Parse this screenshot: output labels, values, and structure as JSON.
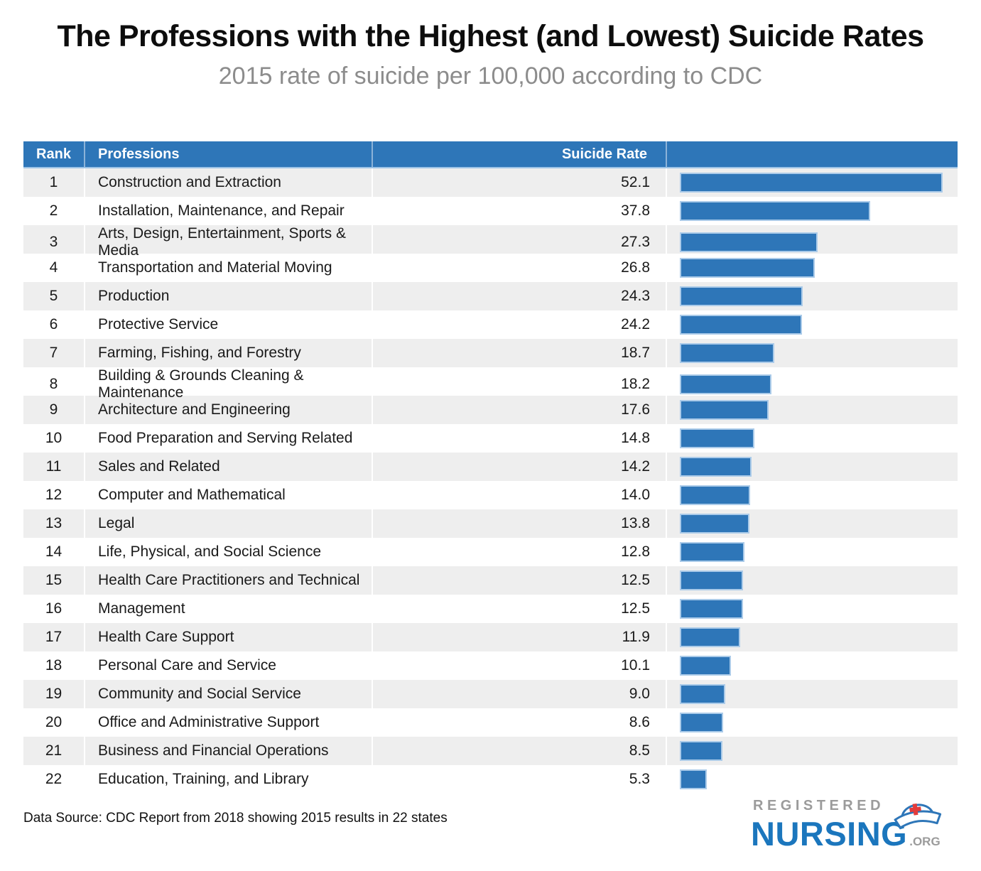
{
  "header": {
    "title": "The Professions with the Highest (and Lowest) Suicide Rates",
    "subtitle": "2015 rate of suicide per 100,000 according to CDC"
  },
  "table": {
    "columns": {
      "rank": "Rank",
      "professions": "Professions",
      "rate": "Suicide Rate"
    }
  },
  "chart_data": {
    "type": "bar",
    "orientation": "horizontal",
    "title": "The Professions with the Highest (and Lowest) Suicide Rates",
    "subtitle": "2015 rate of suicide per 100,000 according to CDC",
    "xlabel": "Suicide Rate",
    "xlim": [
      0,
      52.1
    ],
    "grid": false,
    "legend": "none",
    "ranks": [
      1,
      2,
      3,
      4,
      5,
      6,
      7,
      8,
      9,
      10,
      11,
      12,
      13,
      14,
      15,
      16,
      17,
      18,
      19,
      20,
      21,
      22
    ],
    "categories": [
      "Construction and Extraction",
      "Installation, Maintenance, and Repair",
      "Arts, Design, Entertainment, Sports & Media",
      "Transportation and Material Moving",
      "Production",
      "Protective Service",
      "Farming, Fishing, and Forestry",
      "Building & Grounds Cleaning & Maintenance",
      "Architecture and Engineering",
      "Food Preparation and Serving Related",
      "Sales and Related",
      "Computer and Mathematical",
      "Legal",
      "Life, Physical, and Social Science",
      "Health Care Practitioners and Technical",
      "Management",
      "Health Care Support",
      "Personal Care and Service",
      "Community and Social Service",
      "Office and Administrative Support",
      "Business and Financial Operations",
      "Education, Training, and Library"
    ],
    "values": [
      52.1,
      37.8,
      27.3,
      26.8,
      24.3,
      24.2,
      18.7,
      18.2,
      17.6,
      14.8,
      14.2,
      14.0,
      13.8,
      12.8,
      12.5,
      12.5,
      11.9,
      10.1,
      9.0,
      8.6,
      8.5,
      5.3
    ],
    "bar_color": "#2e76b8",
    "bar_border_color": "#abcbe9",
    "header_bg_color": "#2e76b8",
    "row_stripe_color": "#eeeeee"
  },
  "footer": {
    "source": "Data Source: CDC Report from 2018 showing 2015 results in 22 states",
    "logo": {
      "registered": "REGISTERED",
      "nursing": "NURSING",
      "tld": ".ORG"
    }
  }
}
